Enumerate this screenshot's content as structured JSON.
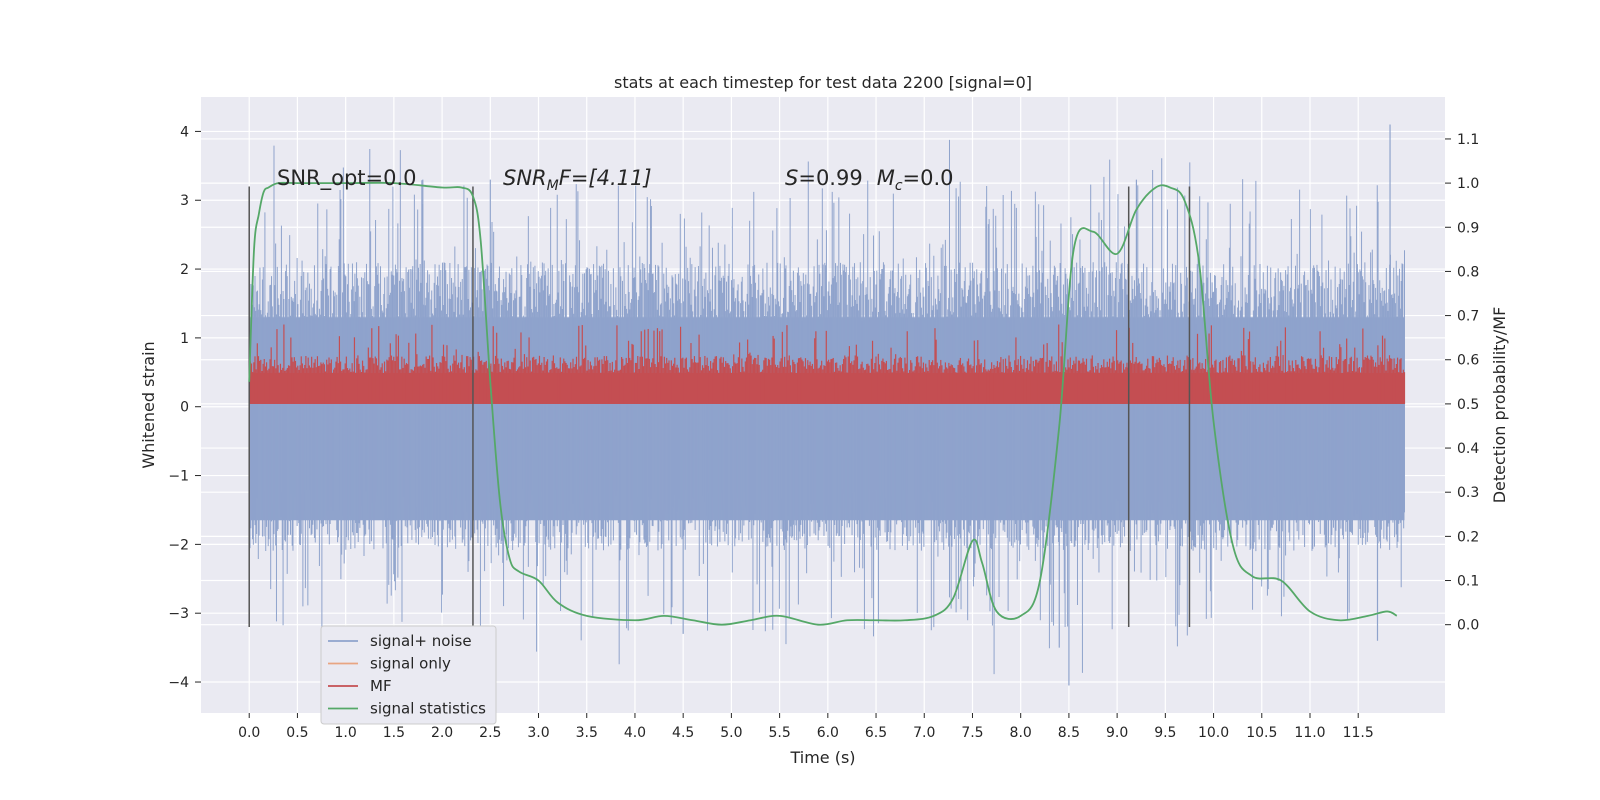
{
  "chart_data": {
    "type": "line",
    "title": "stats at each timestep for test data 2200 [signal=0]",
    "xlabel": "Time (s)",
    "ylabel": "Whitened strain",
    "y2label": "Detection probability/MF",
    "xlim": [
      -0.5,
      12.4
    ],
    "ylim": [
      -4.45,
      4.5
    ],
    "y2lim": [
      -0.2,
      1.195
    ],
    "xticks": [
      0.0,
      0.5,
      1.0,
      1.5,
      2.0,
      2.5,
      3.0,
      3.5,
      4.0,
      4.5,
      5.0,
      5.5,
      6.0,
      6.5,
      7.0,
      7.5,
      8.0,
      8.5,
      9.0,
      9.5,
      10.0,
      10.5,
      11.0,
      11.5
    ],
    "xtick_labels": [
      "0.0",
      "0.5",
      "1.0",
      "1.5",
      "2.0",
      "2.5",
      "3.0",
      "3.5",
      "4.0",
      "4.5",
      "5.0",
      "5.5",
      "6.0",
      "6.5",
      "7.0",
      "7.5",
      "8.0",
      "8.5",
      "9.0",
      "9.5",
      "10.0",
      "10.5",
      "11.0",
      "11.5"
    ],
    "yticks": [
      -4,
      -3,
      -2,
      -1,
      0,
      1,
      2,
      3,
      4
    ],
    "ytick_labels": [
      "−4",
      "−3",
      "−2",
      "−1",
      "0",
      "1",
      "2",
      "3",
      "4"
    ],
    "y2ticks": [
      0.0,
      0.1,
      0.2,
      0.3,
      0.4,
      0.5,
      0.6,
      0.7,
      0.8,
      0.9,
      1.0,
      1.1
    ],
    "y2tick_labels": [
      "0.0",
      "0.1",
      "0.2",
      "0.3",
      "0.4",
      "0.5",
      "0.6",
      "0.7",
      "0.8",
      "0.9",
      "1.0",
      "1.1"
    ],
    "grid": true,
    "legend_position": "bottom-left",
    "series": [
      {
        "name": "signal+ noise",
        "axis": "left",
        "color": "#8fa3cc",
        "x_range": [
          0.0,
          11.98
        ],
        "envelope": {
          "typical_min": -2.0,
          "typical_max": 2.0,
          "peak_min": -4.05,
          "peak_max": 4.1
        }
      },
      {
        "name": "signal only",
        "axis": "left",
        "color": "#e8a582",
        "values": []
      },
      {
        "name": "MF",
        "axis": "right",
        "color": "#c44e52",
        "x_range": [
          0.0,
          11.98
        ],
        "envelope": {
          "min": 0.5,
          "typical_max": 0.57,
          "peak_max": 0.68
        }
      },
      {
        "name": "signal statistics",
        "axis": "right",
        "color": "#55a868",
        "x": [
          0.0,
          0.05,
          0.1,
          0.15,
          0.2,
          0.3,
          0.5,
          1.0,
          1.5,
          2.0,
          2.2,
          2.32,
          2.4,
          2.5,
          2.6,
          2.7,
          2.8,
          3.0,
          3.2,
          3.5,
          4.0,
          4.3,
          4.6,
          4.9,
          5.2,
          5.5,
          5.9,
          6.2,
          6.5,
          6.8,
          7.1,
          7.3,
          7.5,
          7.6,
          7.75,
          8.0,
          8.2,
          8.4,
          8.55,
          8.75,
          9.0,
          9.2,
          9.4,
          9.55,
          9.7,
          9.85,
          10.0,
          10.2,
          10.4,
          10.7,
          11.0,
          11.3,
          11.6,
          11.8,
          11.9
        ],
        "values": [
          0.55,
          0.85,
          0.93,
          0.98,
          0.99,
          1.0,
          1.0,
          1.0,
          1.0,
          0.99,
          0.99,
          0.97,
          0.87,
          0.55,
          0.28,
          0.15,
          0.12,
          0.1,
          0.05,
          0.02,
          0.01,
          0.02,
          0.01,
          0.0,
          0.01,
          0.02,
          0.0,
          0.01,
          0.01,
          0.01,
          0.02,
          0.06,
          0.19,
          0.14,
          0.03,
          0.02,
          0.1,
          0.45,
          0.85,
          0.89,
          0.84,
          0.94,
          0.99,
          0.99,
          0.96,
          0.82,
          0.46,
          0.18,
          0.11,
          0.1,
          0.03,
          0.01,
          0.02,
          0.03,
          0.02
        ]
      }
    ],
    "vertical_lines_x": [
      0.0,
      2.32,
      9.12,
      9.75
    ],
    "annotations": [
      {
        "text": "SNR_opt=0.0",
        "x": 0.2,
        "y": 3.2
      },
      {
        "text": "SNR_MF=[4.11]",
        "x": 2.6,
        "y": 3.2
      },
      {
        "text": "S=0.99   M_c=0.0",
        "x": 5.6,
        "y": 3.2
      }
    ]
  },
  "annotations_text": {
    "snr_opt": "SNR_opt=0.0",
    "snr_mf_main": "SNR",
    "snr_mf_sub": "M",
    "snr_mf_rest": "F=[4.11]",
    "s_main": "S",
    "s_rest": "=0.99",
    "mc_main": "M",
    "mc_sub": "c",
    "mc_rest": "=0.0"
  }
}
